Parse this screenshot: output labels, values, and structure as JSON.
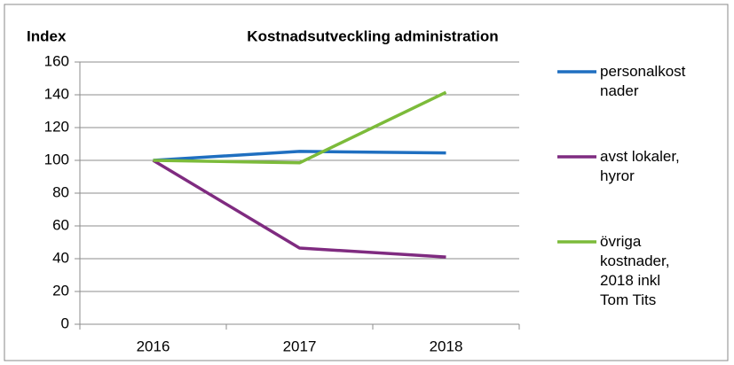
{
  "chart_data": {
    "type": "line",
    "title": "Kostnadsutveckling administration",
    "y_label": "Index",
    "categories": [
      "2016",
      "2017",
      "2018"
    ],
    "series": [
      {
        "name": "personalkostnader",
        "color": "#1f6fc0",
        "values": [
          100,
          105.5,
          104.5
        ]
      },
      {
        "name": "avst lokaler, hyror",
        "color": "#7f2b80",
        "values": [
          100,
          46.5,
          41
        ]
      },
      {
        "name": "övriga kostnader, 2018 inkl Tom Tits",
        "color": "#7cbb3a",
        "values": [
          100,
          98.5,
          141.5
        ]
      }
    ],
    "ylim": [
      0,
      160
    ],
    "yticks": [
      0,
      20,
      40,
      60,
      80,
      100,
      120,
      140,
      160
    ],
    "grid": true,
    "legend": "right"
  }
}
